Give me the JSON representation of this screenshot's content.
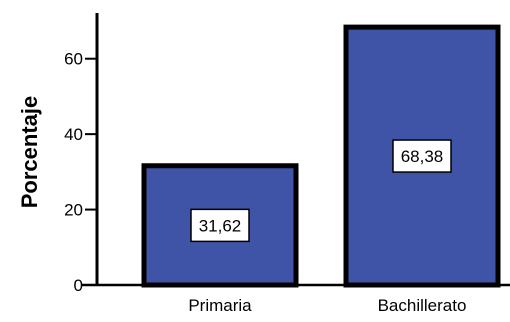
{
  "chart_data": {
    "type": "bar",
    "categories": [
      "Primaria",
      "Bachillerato"
    ],
    "values": [
      31.62,
      68.38
    ],
    "data_labels": [
      "31,62",
      "68,38"
    ],
    "xlabel": "",
    "ylabel": "Porcentaje",
    "ylim": [
      0,
      70
    ],
    "yticks": [
      0,
      20,
      40,
      60
    ],
    "ytick_labels": [
      "0",
      "20",
      "40",
      "60"
    ],
    "grid": false,
    "bar_color": "#3F54A7",
    "bar_edge_color": "#000000",
    "label_box_color": "#FFFFFF"
  }
}
